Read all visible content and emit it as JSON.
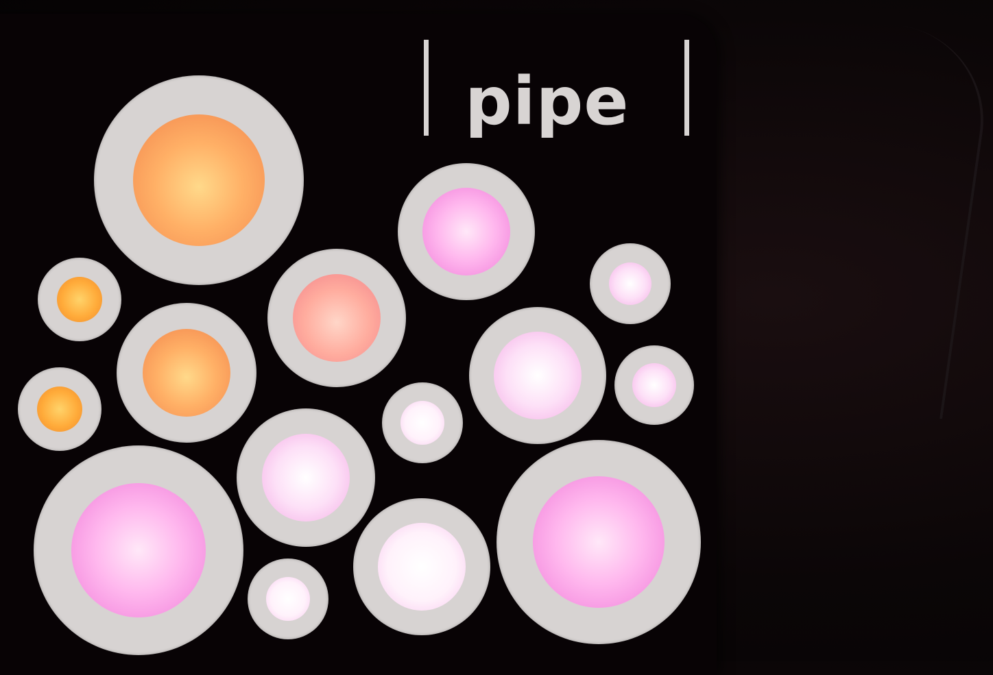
{
  "sign": {
    "wordmark": "pipe",
    "colors": {
      "panel": "#080305",
      "ring": "#d7d3d2",
      "text": "#d8d4d3"
    }
  },
  "bubbles": [
    {
      "name": "bubble-large-orange",
      "tone": "c-orange"
    },
    {
      "name": "bubble-small-amber-top",
      "tone": "c-amber"
    },
    {
      "name": "bubble-small-amber-bottom",
      "tone": "c-amber"
    },
    {
      "name": "bubble-medium-orange",
      "tone": "c-orange"
    },
    {
      "name": "bubble-medium-salmon",
      "tone": "c-salmon"
    },
    {
      "name": "bubble-medium-pink-top",
      "tone": "c-pink"
    },
    {
      "name": "bubble-small-pale-right-top",
      "tone": "c-pale"
    },
    {
      "name": "bubble-medium-pale-right",
      "tone": "c-pale"
    },
    {
      "name": "bubble-small-pale-right-bottom",
      "tone": "c-pale"
    },
    {
      "name": "bubble-small-white-center",
      "tone": "c-white"
    },
    {
      "name": "bubble-medium-pale-center",
      "tone": "c-pale"
    },
    {
      "name": "bubble-large-pink-bottom-left",
      "tone": "c-pink"
    },
    {
      "name": "bubble-small-white-bottom",
      "tone": "c-white"
    },
    {
      "name": "bubble-medium-white-bottom",
      "tone": "c-white"
    },
    {
      "name": "bubble-large-pink-bottom-right",
      "tone": "c-pink"
    }
  ]
}
